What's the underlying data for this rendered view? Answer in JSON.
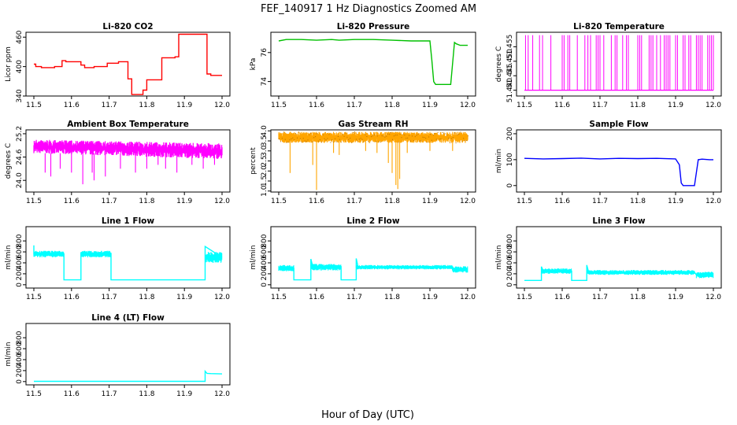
{
  "figure": {
    "title": "FEF_140917  1 Hz Diagnostics Zoomed AM",
    "xlabel": "Hour of Day (UTC)"
  },
  "chart_data": [
    {
      "type": "line",
      "title": "Li-820 CO2",
      "xlabel": "",
      "ylabel": "Licor ppm",
      "xlim": [
        11.5,
        12.0
      ],
      "ylim": [
        340,
        470
      ],
      "x_ticks": [
        "11.5",
        "11.6",
        "11.7",
        "11.8",
        "11.9",
        "12.0"
      ],
      "y_ticks": [
        "340",
        "400",
        "460"
      ],
      "color": "#ff0000",
      "series": [
        {
          "x": [
            11.5,
            11.505,
            11.505,
            11.52,
            11.52,
            11.555,
            11.555,
            11.575,
            11.575,
            11.585,
            11.585,
            11.625,
            11.625,
            11.635,
            11.635,
            11.66,
            11.66,
            11.695,
            11.695,
            11.725,
            11.725,
            11.75,
            11.75,
            11.76,
            11.76,
            11.79,
            11.79,
            11.8,
            11.8,
            11.84,
            11.84,
            11.875,
            11.875,
            11.885,
            11.885,
            11.96,
            11.96,
            11.97,
            11.97,
            12.0
          ],
          "y": [
            405,
            405,
            400,
            400,
            398,
            398,
            400,
            400,
            412,
            412,
            410,
            410,
            403,
            403,
            398,
            398,
            400,
            400,
            407,
            407,
            410,
            410,
            375,
            375,
            343,
            343,
            352,
            352,
            373,
            373,
            418,
            418,
            420,
            420,
            466,
            466,
            385,
            385,
            382,
            382
          ]
        }
      ]
    },
    {
      "type": "line",
      "title": "Li-820 Pressure",
      "xlabel": "",
      "ylabel": "kPa",
      "xlim": [
        11.5,
        12.0
      ],
      "ylim": [
        73.0,
        77.4
      ],
      "x_ticks": [
        "11.5",
        "11.6",
        "11.7",
        "11.8",
        "11.9",
        "12.0"
      ],
      "y_ticks": [
        "74",
        "76"
      ],
      "color": "#00c000",
      "series": [
        {
          "x": [
            11.5,
            11.52,
            11.56,
            11.6,
            11.64,
            11.66,
            11.7,
            11.75,
            11.8,
            11.85,
            11.9,
            11.905,
            11.91,
            11.915,
            11.93,
            11.945,
            11.955,
            11.965,
            11.97,
            11.98,
            12.0
          ],
          "y": [
            76.8,
            76.9,
            76.9,
            76.85,
            76.9,
            76.85,
            76.9,
            76.9,
            76.85,
            76.8,
            76.8,
            75.5,
            74.0,
            73.8,
            73.8,
            73.8,
            73.8,
            76.7,
            76.6,
            76.5,
            76.5
          ]
        }
      ]
    },
    {
      "type": "line",
      "title": "Li-820 Temperature",
      "xlabel": "",
      "ylabel": "degrees C",
      "xlim": [
        11.5,
        12.0
      ],
      "ylim": [
        51.438,
        51.46
      ],
      "x_ticks": [
        "11.5",
        "11.6",
        "11.7",
        "11.8",
        "11.9",
        "12.0"
      ],
      "y_ticks": [
        "51.440",
        "51.445",
        "51.450",
        "51.455"
      ],
      "color": "#ff00ff",
      "baseline": 51.44,
      "high": 51.459,
      "spike_x": [
        11.503,
        11.51,
        11.522,
        11.54,
        11.548,
        11.57,
        11.6,
        11.605,
        11.615,
        11.62,
        11.64,
        11.66,
        11.668,
        11.675,
        11.69,
        11.695,
        11.7,
        11.71,
        11.73,
        11.74,
        11.745,
        11.76,
        11.77,
        11.775,
        11.8,
        11.805,
        11.81,
        11.83,
        11.835,
        11.84,
        11.85,
        11.86,
        11.87,
        11.875,
        11.88,
        11.885,
        11.9,
        11.905,
        11.92,
        11.925,
        11.935,
        11.94,
        11.955,
        11.96,
        11.965,
        11.97,
        11.985,
        11.99,
        11.995,
        12.0
      ]
    },
    {
      "type": "line",
      "title": "Ambient Box Temperature",
      "xlabel": "",
      "ylabel": "degrees C",
      "xlim": [
        11.5,
        12.0
      ],
      "ylim": [
        23.7,
        25.3
      ],
      "x_ticks": [
        "11.5",
        "11.6",
        "11.7",
        "11.8",
        "11.9",
        "12.0"
      ],
      "y_ticks": [
        "24.0",
        "24.6",
        "25.2"
      ],
      "color": "#ff00ff",
      "band": {
        "start_low": 24.7,
        "start_high": 25.05,
        "end_low": 24.55,
        "end_high": 24.95
      },
      "dips_x": [
        11.53,
        11.545,
        11.57,
        11.6,
        11.63,
        11.655,
        11.66,
        11.69,
        11.73,
        11.77,
        11.8,
        11.83,
        11.85,
        11.88,
        11.92,
        11.95,
        11.98
      ],
      "dips_y": [
        24.2,
        24.1,
        24.3,
        24.2,
        23.9,
        24.2,
        24.0,
        24.1,
        24.3,
        24.2,
        24.3,
        24.4,
        24.3,
        24.2,
        24.4,
        24.3,
        24.4
      ]
    },
    {
      "type": "line",
      "title": "Gas Stream RH",
      "xlabel": "",
      "ylabel": "percent",
      "xlim": [
        11.5,
        12.0
      ],
      "ylim": [
        0.95,
        4.05
      ],
      "x_ticks": [
        "11.5",
        "11.6",
        "11.7",
        "11.8",
        "11.9",
        "12.0"
      ],
      "y_ticks": [
        "1.0",
        "1.5",
        "2.0",
        "2.5",
        "3.0",
        "3.5",
        "4.0"
      ],
      "color": "#ffa500",
      "band": {
        "low": 3.4,
        "high": 3.95
      },
      "dips_x": [
        11.53,
        11.59,
        11.6,
        11.645,
        11.66,
        11.73,
        11.76,
        11.79,
        11.8,
        11.81,
        11.815,
        11.82,
        11.84,
        11.9,
        11.96
      ],
      "dips_y": [
        1.9,
        2.3,
        1.05,
        2.9,
        2.8,
        3.0,
        2.9,
        2.4,
        1.9,
        1.3,
        1.1,
        1.6,
        2.9,
        3.0,
        3.0
      ]
    },
    {
      "type": "line",
      "title": "Sample Flow",
      "xlabel": "",
      "ylabel": "ml/min",
      "xlim": [
        11.5,
        12.0
      ],
      "ylim": [
        -25,
        215
      ],
      "x_ticks": [
        "11.5",
        "11.6",
        "11.7",
        "11.8",
        "11.9",
        "12.0"
      ],
      "y_ticks": [
        "0",
        "100",
        "200"
      ],
      "color": "#0000ff",
      "series": [
        {
          "x": [
            11.5,
            11.55,
            11.6,
            11.65,
            11.7,
            11.75,
            11.8,
            11.85,
            11.9,
            11.91,
            11.915,
            11.92,
            11.95,
            11.955,
            11.96,
            11.97,
            11.99,
            12.0
          ],
          "y": [
            105,
            103,
            104,
            106,
            103,
            105,
            104,
            105,
            103,
            80,
            10,
            0,
            0,
            50,
            100,
            102,
            100,
            100
          ]
        }
      ]
    },
    {
      "type": "line",
      "title": "Line 1 Flow",
      "xlabel": "",
      "ylabel": "ml/min",
      "xlim": [
        11.5,
        12.0
      ],
      "ylim": [
        -60,
        1060
      ],
      "x_ticks": [
        "11.5",
        "11.6",
        "11.7",
        "11.8",
        "11.9",
        "12.0"
      ],
      "y_ticks": [
        "0",
        "200",
        "400",
        "600",
        "800"
      ],
      "color": "#00ffff",
      "band_segments": [
        [
          11.5,
          11.58,
          500,
          620
        ],
        [
          11.625,
          11.705,
          500,
          620
        ],
        [
          11.955,
          12.0,
          400,
          600
        ]
      ],
      "series": [
        {
          "x": [
            11.5,
            11.5,
            11.58,
            11.58,
            11.625,
            11.625,
            11.705,
            11.705,
            11.955,
            11.955,
            12.0
          ],
          "y": [
            720,
            560,
            560,
            90,
            90,
            570,
            570,
            90,
            90,
            700,
            500
          ]
        }
      ]
    },
    {
      "type": "line",
      "title": "Line 2 Flow",
      "xlabel": "",
      "ylabel": "ml/min",
      "xlim": [
        11.5,
        12.0
      ],
      "ylim": [
        -60,
        1060
      ],
      "x_ticks": [
        "11.5",
        "11.6",
        "11.7",
        "11.8",
        "11.9",
        "12.0"
      ],
      "y_ticks": [
        "0",
        "200",
        "400",
        "600",
        "800"
      ],
      "color": "#00ffff",
      "band_segments": [
        [
          11.5,
          11.54,
          240,
          360
        ],
        [
          11.585,
          11.665,
          260,
          380
        ],
        [
          11.705,
          11.96,
          280,
          360
        ],
        [
          11.96,
          12.0,
          220,
          340
        ]
      ],
      "series": [
        {
          "x": [
            11.5,
            11.54,
            11.54,
            11.585,
            11.585,
            11.59,
            11.665,
            11.665,
            11.705,
            11.705,
            11.71,
            11.96,
            11.96,
            12.0
          ],
          "y": [
            300,
            300,
            90,
            90,
            470,
            330,
            330,
            90,
            90,
            480,
            320,
            320,
            280,
            280
          ]
        }
      ]
    },
    {
      "type": "line",
      "title": "Line 3 Flow",
      "xlabel": "",
      "ylabel": "ml/min",
      "xlim": [
        11.5,
        12.0
      ],
      "ylim": [
        -60,
        1060
      ],
      "x_ticks": [
        "11.5",
        "11.6",
        "11.7",
        "11.8",
        "11.9",
        "12.0"
      ],
      "y_ticks": [
        "0",
        "200",
        "400",
        "600",
        "800"
      ],
      "color": "#00ffff",
      "band_segments": [
        [
          11.545,
          11.625,
          200,
          300
        ],
        [
          11.665,
          11.95,
          180,
          270
        ],
        [
          11.955,
          12.0,
          120,
          240
        ]
      ],
      "series": [
        {
          "x": [
            11.5,
            11.545,
            11.545,
            11.55,
            11.625,
            11.625,
            11.665,
            11.665,
            11.67,
            11.95,
            11.955,
            12.0
          ],
          "y": [
            80,
            80,
            330,
            250,
            250,
            80,
            80,
            360,
            230,
            230,
            180,
            180
          ]
        }
      ]
    },
    {
      "type": "line",
      "title": "Line 4 (LT) Flow",
      "xlabel": "",
      "ylabel": "ml/min",
      "xlim": [
        11.5,
        12.0
      ],
      "ylim": [
        -60,
        1060
      ],
      "x_ticks": [
        "11.5",
        "11.6",
        "11.7",
        "11.8",
        "11.9",
        "12.0"
      ],
      "y_ticks": [
        "0",
        "200",
        "400",
        "600",
        "800"
      ],
      "color": "#00ffff",
      "series": [
        {
          "x": [
            11.5,
            11.6,
            11.7,
            11.8,
            11.9,
            11.955,
            11.955,
            11.96,
            11.97,
            12.0
          ],
          "y": [
            5,
            5,
            5,
            5,
            5,
            5,
            190,
            150,
            145,
            140
          ]
        }
      ]
    }
  ]
}
